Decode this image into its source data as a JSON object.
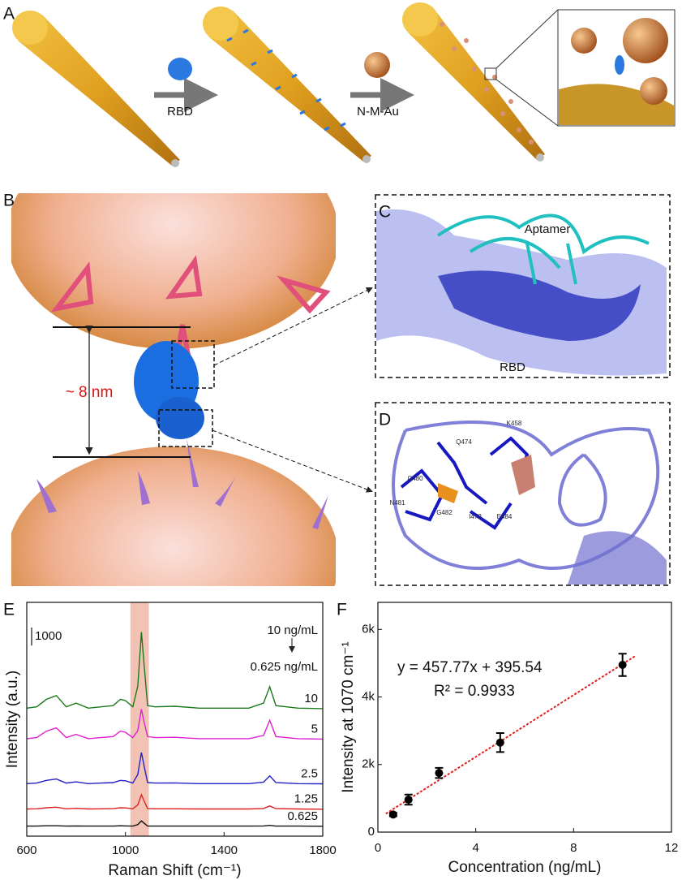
{
  "panel_labels": [
    "A",
    "B",
    "C",
    "D",
    "E",
    "F"
  ],
  "panel_a": {
    "step1": "RBD",
    "step2": "N-M-Au"
  },
  "panel_b": {
    "distance": "~ 8 nm"
  },
  "panel_c": {
    "aptamer": "Aptamer",
    "protein": "RBD"
  },
  "panel_d": {
    "residues": [
      "Q474",
      "K458",
      "C480",
      "N481",
      "G482",
      "I472",
      "E484"
    ]
  },
  "chart_data": [
    {
      "type": "line",
      "x": [
        600,
        640,
        680,
        720,
        760,
        800,
        850,
        900,
        950,
        980,
        1000,
        1030,
        1050,
        1065,
        1075,
        1090,
        1120,
        1200,
        1300,
        1400,
        1500,
        1560,
        1585,
        1610,
        1700,
        1800
      ],
      "series": [
        {
          "name": "10",
          "color": "#1a7a1a",
          "values": [
            7120,
            7190,
            7610,
            7820,
            7190,
            7400,
            7120,
            7190,
            7260,
            7610,
            7540,
            7190,
            8340,
            11350,
            9630,
            7260,
            7190,
            7220,
            7120,
            7120,
            7120,
            7400,
            8310,
            7260,
            7120,
            7090
          ]
        },
        {
          "name": "5",
          "color": "#e020d0",
          "values": [
            5420,
            5480,
            5840,
            6020,
            5480,
            5660,
            5420,
            5480,
            5540,
            5840,
            5780,
            5480,
            5870,
            7060,
            6380,
            5540,
            5480,
            5500,
            5420,
            5420,
            5420,
            5600,
            6440,
            5540,
            5420,
            5400
          ]
        },
        {
          "name": "2.5",
          "color": "#2020c8",
          "values": [
            2920,
            2950,
            3100,
            3180,
            2950,
            3020,
            2920,
            2950,
            2980,
            3100,
            3080,
            2950,
            3430,
            4650,
            3950,
            2980,
            2950,
            2960,
            2920,
            2920,
            2920,
            3000,
            3350,
            2980,
            2920,
            2910
          ]
        },
        {
          "name": "1.25",
          "color": "#e02020",
          "values": [
            1510,
            1520,
            1580,
            1610,
            1520,
            1550,
            1510,
            1520,
            1530,
            1580,
            1570,
            1520,
            1740,
            2300,
            1980,
            1530,
            1520,
            1520,
            1510,
            1510,
            1510,
            1540,
            1680,
            1530,
            1510,
            1500
          ]
        },
        {
          "name": "0.625",
          "color": "#111111",
          "values": [
            560,
            560,
            580,
            580,
            560,
            570,
            560,
            560,
            560,
            580,
            570,
            560,
            640,
            850,
            730,
            560,
            560,
            560,
            560,
            560,
            560,
            570,
            600,
            560,
            560,
            550
          ]
        }
      ],
      "xlim": [
        600,
        1800
      ],
      "xticks": [
        600,
        1000,
        1400,
        1800
      ],
      "ylim": [
        0,
        13000
      ],
      "xlabel": "Raman Shift (cm⁻¹)",
      "ylabel": "Intensity (a.u.)",
      "scale_bar": 1000,
      "legend_from": "10 ng/mL",
      "legend_to": "0.625 ng/mL",
      "highlight": [
        1020,
        1095
      ],
      "highlight_color": "#f0b8a8"
    },
    {
      "type": "scatter",
      "x": [
        0.625,
        1.25,
        2.5,
        5,
        10
      ],
      "values": [
        520,
        960,
        1750,
        2650,
        4950
      ],
      "errors": [
        50,
        150,
        150,
        280,
        330
      ],
      "color": "#000000",
      "xlim": [
        0,
        12
      ],
      "xticks": [
        0,
        4,
        8,
        12
      ],
      "ylim": [
        0,
        6800
      ],
      "yticks": [
        0,
        {
          "value": 2000,
          "label": "2k"
        },
        {
          "value": 4000,
          "label": "4k"
        },
        {
          "value": 6000,
          "label": "6k"
        }
      ],
      "xlabel": "Concentration (ng/mL)",
      "ylabel": "Intensity at 1070 cm⁻¹",
      "annotations": [
        "y = 457.77x + 395.54",
        "R² = 0.9933"
      ],
      "fit": {
        "slope": 457.77,
        "intercept": 395.54
      },
      "fit_color": "#e02020"
    }
  ]
}
